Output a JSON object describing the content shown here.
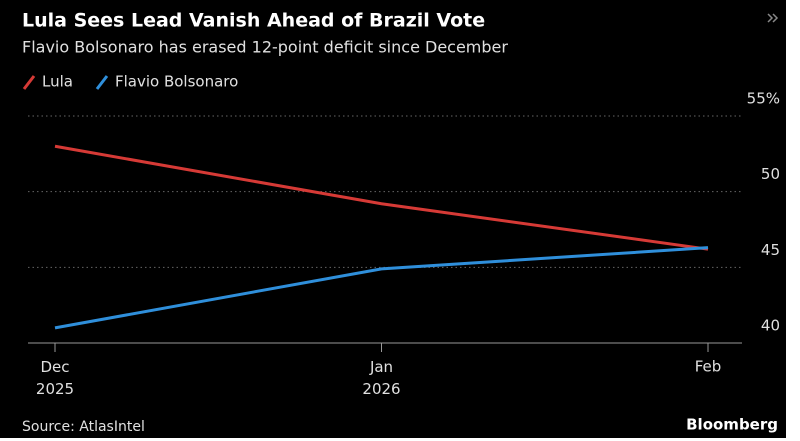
{
  "chart_data": {
    "type": "line",
    "title": "Lula Sees Lead Vanish Ahead of Brazil Vote",
    "subtitle": "Flavio Bolsonaro has erased 12-point deficit since December",
    "categories": [
      "Dec 2025",
      "Jan 2026",
      "Feb"
    ],
    "series": [
      {
        "name": "Lula",
        "color": "#d63a36",
        "values": [
          53.0,
          49.2,
          46.2
        ]
      },
      {
        "name": "Flavio Bolsonaro",
        "color": "#2f8fdb",
        "values": [
          41.0,
          44.9,
          46.3
        ]
      }
    ],
    "ylim": [
      40,
      55
    ],
    "yticks": [
      {
        "value": 55,
        "label": "55%"
      },
      50,
      45,
      40
    ],
    "grid": true,
    "source": "Source: AtlasIntel",
    "brand": "Bloomberg"
  }
}
